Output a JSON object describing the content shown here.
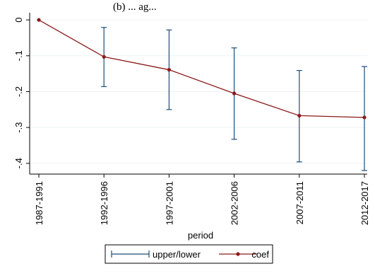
{
  "page": {
    "title_fragment": "(b) ... ag..."
  },
  "chart_data": {
    "type": "line",
    "title": "",
    "xlabel": "period",
    "ylabel": "",
    "categories": [
      "1987-1991",
      "1992-1996",
      "1997-2001",
      "2002-2006",
      "2007-2011",
      "2012-2017"
    ],
    "ylim": [
      -0.43,
      0.02
    ],
    "yticks": [
      0,
      -0.1,
      -0.2,
      -0.3,
      -0.4
    ],
    "ytick_labels": [
      "0",
      "-.1",
      "-.2",
      "-.3",
      "-.4"
    ],
    "grid": true,
    "series": [
      {
        "name": "coef",
        "values": [
          0,
          -0.103,
          -0.139,
          -0.205,
          -0.267,
          -0.272
        ],
        "color": "#8B1A1A"
      },
      {
        "name": "upper/lower",
        "upper": [
          0,
          -0.021,
          -0.028,
          -0.078,
          -0.141,
          -0.13
        ],
        "lower": [
          0,
          -0.186,
          -0.25,
          -0.333,
          -0.396,
          -0.42
        ],
        "color": "#1F4E79"
      }
    ],
    "legend": {
      "position": "bottom",
      "entries": [
        "upper/lower",
        "coef"
      ]
    }
  }
}
